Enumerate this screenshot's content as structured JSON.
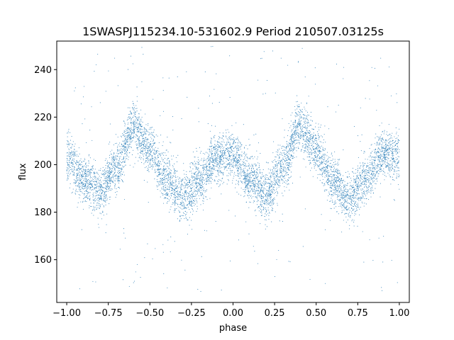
{
  "chart_data": {
    "type": "scatter",
    "title": "1SWASPJ115234.10-531602.9 Period 210507.03125s",
    "xlabel": "phase",
    "ylabel": "flux",
    "xlim": [
      -1.06,
      1.06
    ],
    "ylim": [
      142,
      252
    ],
    "xticks": [
      -1.0,
      -0.75,
      -0.5,
      -0.25,
      0.0,
      0.25,
      0.5,
      0.75,
      1.0
    ],
    "xtick_labels": [
      "−1.00",
      "−0.75",
      "−0.50",
      "−0.25",
      "0.00",
      "0.25",
      "0.50",
      "0.75",
      "1.00"
    ],
    "yticks": [
      160,
      180,
      200,
      220,
      240
    ],
    "ytick_labels": [
      "160",
      "180",
      "200",
      "220",
      "240"
    ],
    "grid": false,
    "legend": "none",
    "point_color": "#1f77b4",
    "series": [
      {
        "trend_x": [
          -1.0,
          -0.9,
          -0.8,
          -0.7,
          -0.6,
          -0.5,
          -0.4,
          -0.3,
          -0.2,
          -0.1,
          0.0,
          0.1,
          0.2,
          0.3,
          0.4,
          0.5,
          0.6,
          0.7,
          0.8,
          0.9,
          1.0
        ],
        "trend_y": [
          203,
          193,
          188,
          199,
          216,
          206,
          193,
          186,
          193,
          203,
          204,
          194,
          187,
          199,
          216,
          206,
          193,
          186,
          194,
          204,
          204
        ],
        "scatter_sd": 5,
        "outlier_range": [
          146,
          250
        ],
        "n_points": 7000
      }
    ]
  }
}
